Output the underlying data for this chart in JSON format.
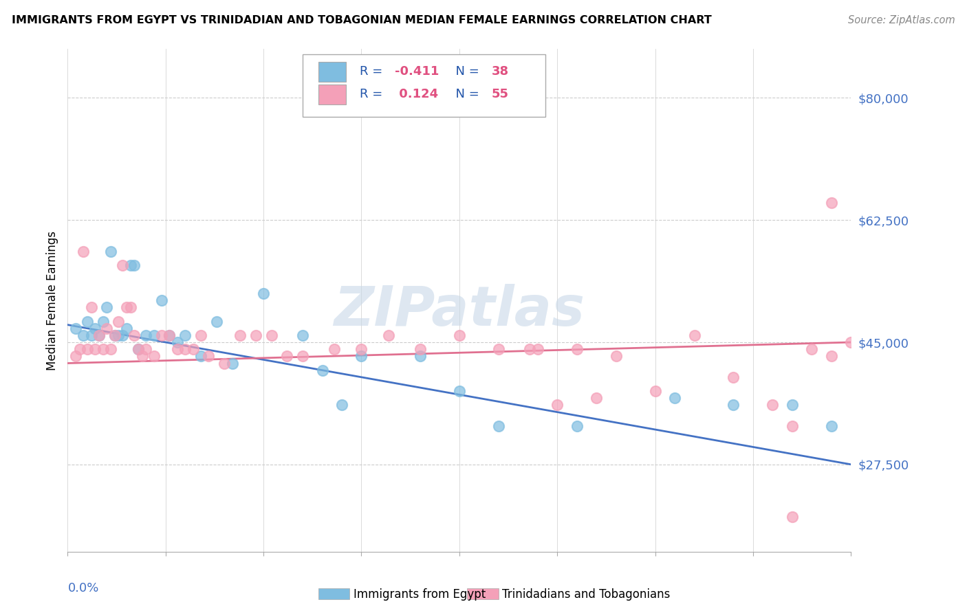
{
  "title": "IMMIGRANTS FROM EGYPT VS TRINIDADIAN AND TOBAGONIAN MEDIAN FEMALE EARNINGS CORRELATION CHART",
  "source": "Source: ZipAtlas.com",
  "ylabel": "Median Female Earnings",
  "y_ticks": [
    27500,
    45000,
    62500,
    80000
  ],
  "y_tick_labels": [
    "$27,500",
    "$45,000",
    "$62,500",
    "$80,000"
  ],
  "xlim": [
    0.0,
    0.2
  ],
  "ylim": [
    15000,
    87000
  ],
  "color_egypt": "#7fbde0",
  "color_tt": "#f4a0b8",
  "watermark": "ZIPatlas",
  "egypt_x": [
    0.002,
    0.004,
    0.005,
    0.006,
    0.007,
    0.008,
    0.009,
    0.01,
    0.011,
    0.012,
    0.013,
    0.014,
    0.015,
    0.016,
    0.017,
    0.018,
    0.02,
    0.022,
    0.024,
    0.026,
    0.028,
    0.03,
    0.034,
    0.038,
    0.042,
    0.05,
    0.06,
    0.065,
    0.07,
    0.075,
    0.09,
    0.1,
    0.11,
    0.13,
    0.155,
    0.17,
    0.185,
    0.195
  ],
  "egypt_y": [
    47000,
    46000,
    48000,
    46000,
    47000,
    46000,
    48000,
    50000,
    58000,
    46000,
    46000,
    46000,
    47000,
    56000,
    56000,
    44000,
    46000,
    46000,
    51000,
    46000,
    45000,
    46000,
    43000,
    48000,
    42000,
    52000,
    46000,
    41000,
    36000,
    43000,
    43000,
    38000,
    33000,
    33000,
    37000,
    36000,
    36000,
    33000
  ],
  "tt_x": [
    0.002,
    0.003,
    0.004,
    0.005,
    0.006,
    0.007,
    0.008,
    0.009,
    0.01,
    0.011,
    0.012,
    0.013,
    0.014,
    0.015,
    0.016,
    0.017,
    0.018,
    0.019,
    0.02,
    0.022,
    0.024,
    0.026,
    0.028,
    0.03,
    0.032,
    0.034,
    0.036,
    0.04,
    0.044,
    0.048,
    0.052,
    0.056,
    0.06,
    0.068,
    0.075,
    0.082,
    0.09,
    0.1,
    0.11,
    0.12,
    0.13,
    0.14,
    0.15,
    0.16,
    0.17,
    0.18,
    0.185,
    0.19,
    0.195,
    0.2,
    0.118,
    0.125,
    0.135,
    0.185,
    0.195
  ],
  "tt_y": [
    43000,
    44000,
    58000,
    44000,
    50000,
    44000,
    46000,
    44000,
    47000,
    44000,
    46000,
    48000,
    56000,
    50000,
    50000,
    46000,
    44000,
    43000,
    44000,
    43000,
    46000,
    46000,
    44000,
    44000,
    44000,
    46000,
    43000,
    42000,
    46000,
    46000,
    46000,
    43000,
    43000,
    44000,
    44000,
    46000,
    44000,
    46000,
    44000,
    44000,
    44000,
    43000,
    38000,
    46000,
    40000,
    36000,
    33000,
    44000,
    65000,
    45000,
    44000,
    36000,
    37000,
    20000,
    43000
  ]
}
